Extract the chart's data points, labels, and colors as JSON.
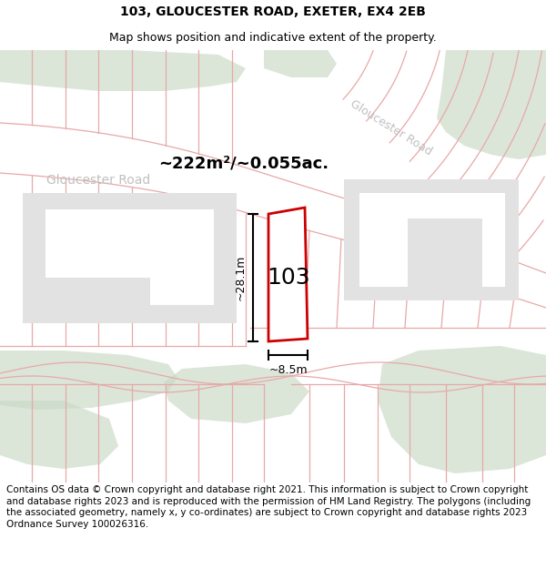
{
  "title_line1": "103, GLOUCESTER ROAD, EXETER, EX4 2EB",
  "title_line2": "Map shows position and indicative extent of the property.",
  "footer_text": "Contains OS data © Crown copyright and database right 2021. This information is subject to Crown copyright and database rights 2023 and is reproduced with the permission of HM Land Registry. The polygons (including the associated geometry, namely x, y co-ordinates) are subject to Crown copyright and database rights 2023 Ordnance Survey 100026316.",
  "area_label": "~222m²/~0.055ac.",
  "road_label_horiz": "Gloucester Road",
  "road_label_diag": "Gloucester Road",
  "property_number": "103",
  "dim_height_label": "~28.1m",
  "dim_width_label": "~8.5m",
  "bg_color": "#ffffff",
  "green_fill": "#c9d9c5",
  "pink_line": "#e8a8a8",
  "red_line": "#cc0000",
  "gray_fill": "#e2e2e2",
  "title_fontsize": 10,
  "subtitle_fontsize": 9,
  "footer_fontsize": 7.5
}
